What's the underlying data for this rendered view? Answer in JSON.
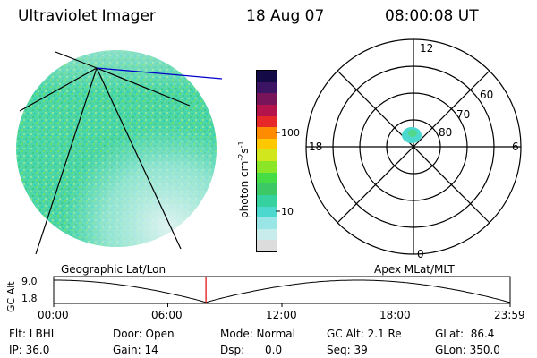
{
  "header": {
    "title": "Ultraviolet Imager",
    "date": "18 Aug 07",
    "time": "08:00:08 UT"
  },
  "colorbar": {
    "unit": "photon cm",
    "unit_exp1": "-2",
    "unit_mid": "s",
    "unit_exp2": "-1",
    "tick_hi": "100",
    "tick_lo": "10",
    "colors": [
      "#dcdcdc",
      "#c8ecec",
      "#9ae6e6",
      "#4dd8cf",
      "#35d2a0",
      "#3cc864",
      "#46dc46",
      "#8ce628",
      "#d2e61e",
      "#ffc800",
      "#ff8c00",
      "#e62828",
      "#b4144b",
      "#78145a",
      "#3c1464",
      "#140a46"
    ]
  },
  "polar": {
    "mlt_top": "12",
    "mlt_left": "18",
    "mlt_right": "6",
    "mlt_bottom": "0",
    "lat_60": "60",
    "lat_70": "70",
    "lat_80": "80"
  },
  "timeline": {
    "axis_title": "GC Alt",
    "ymax": "9.0",
    "ymin": "1.8",
    "label_left": "Geographic Lat/Lon",
    "label_right": "Apex  MLat/MLT",
    "ticks": [
      "00:00",
      "06:00",
      "12:00",
      "18:00",
      "23:59"
    ],
    "cursor_fraction": 0.3335
  },
  "info": {
    "flt": "Flt: LBHL",
    "ip": "IP: 36.0",
    "door": "Door: Open",
    "gain": "Gain: 14",
    "mode": "Mode: Normal",
    "dsp": "Dsp:      0.0",
    "gcalt": "GC Alt: 2.1 Re",
    "seq": "Seq: 39",
    "glat": "GLat:  86.4",
    "glon": "GLon: 350.0"
  }
}
